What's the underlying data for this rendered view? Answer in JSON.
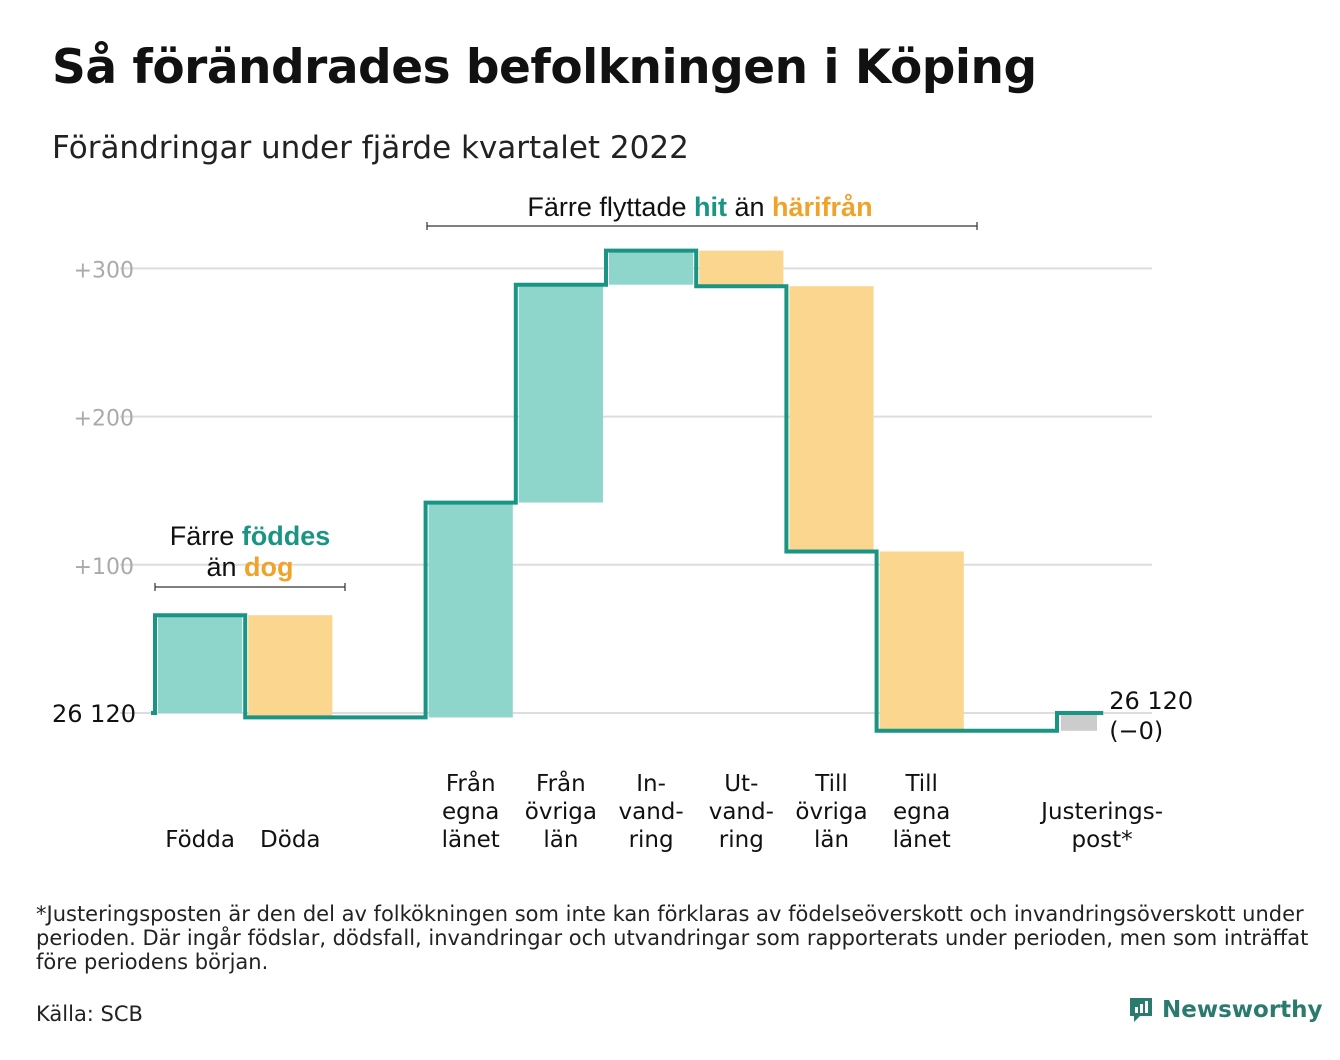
{
  "title": "Så förändrades befolkningen i Köping",
  "subtitle": "Förändringar under fjärde kvartalet 2022",
  "footnote": "*Justeringsposten är den del av folkökningen som inte kan förklaras av födelseöverskott och invandringsöverskott under perioden. Där ingår födslar, dödsfall, invandringar och utvandringar som rapporterats under perioden, men som inträffat före periodens början.",
  "source": "Källa: SCB",
  "brand": "Newsworthy",
  "colors": {
    "increase": "#8ed5cc",
    "decrease": "#fad68e",
    "adjustment": "#cccccc",
    "line": "#1a9483",
    "accent_teal": "#1a9483",
    "accent_orange": "#f0a32a",
    "grid": "#dddddd",
    "tick": "#aaaaaa"
  },
  "annotations": {
    "births": {
      "line1_pre": "Färre ",
      "line1_hl": "föddes",
      "line2_pre": "än ",
      "line2_hl": "dog"
    },
    "migration": {
      "pre": "Färre flyttade ",
      "hl1": "hit",
      "mid": " än ",
      "hl2": "härifrån"
    }
  },
  "chart_data": {
    "type": "waterfall",
    "title": "Så förändrades befolkningen i Köping",
    "subtitle": "Förändringar under fjärde kvartalet 2022",
    "start_value": 26120,
    "start_label": "26 120",
    "end_label_lines": [
      "26 120",
      "(−0)"
    ],
    "y_ticks": [
      {
        "value": 300,
        "label": "+300"
      },
      {
        "value": 200,
        "label": "+200"
      },
      {
        "value": 100,
        "label": "+100"
      }
    ],
    "ylim": [
      -15,
      330
    ],
    "grid": true,
    "steps": [
      {
        "label_lines": [
          "Födda"
        ],
        "change": 66,
        "kind": "increase"
      },
      {
        "label_lines": [
          "Döda"
        ],
        "change": -69,
        "kind": "decrease"
      },
      {
        "label_lines": [],
        "change": 0,
        "kind": "gap"
      },
      {
        "label_lines": [
          "Från",
          "egna",
          "länet"
        ],
        "change": 145,
        "kind": "increase"
      },
      {
        "label_lines": [
          "Från",
          "övriga",
          "län"
        ],
        "change": 147,
        "kind": "increase"
      },
      {
        "label_lines": [
          "In-",
          "vand-",
          "ring"
        ],
        "change": 23,
        "kind": "increase"
      },
      {
        "label_lines": [
          "Ut-",
          "vand-",
          "ring"
        ],
        "change": -24,
        "kind": "decrease"
      },
      {
        "label_lines": [
          "Till",
          "övriga",
          "län"
        ],
        "change": -179,
        "kind": "decrease"
      },
      {
        "label_lines": [
          "Till",
          "egna",
          "länet"
        ],
        "change": -121,
        "kind": "decrease"
      },
      {
        "label_lines": [],
        "change": 0,
        "kind": "gap"
      },
      {
        "label_lines": [
          "Justerings-",
          "post*"
        ],
        "change": 12,
        "kind": "adjustment"
      }
    ]
  }
}
